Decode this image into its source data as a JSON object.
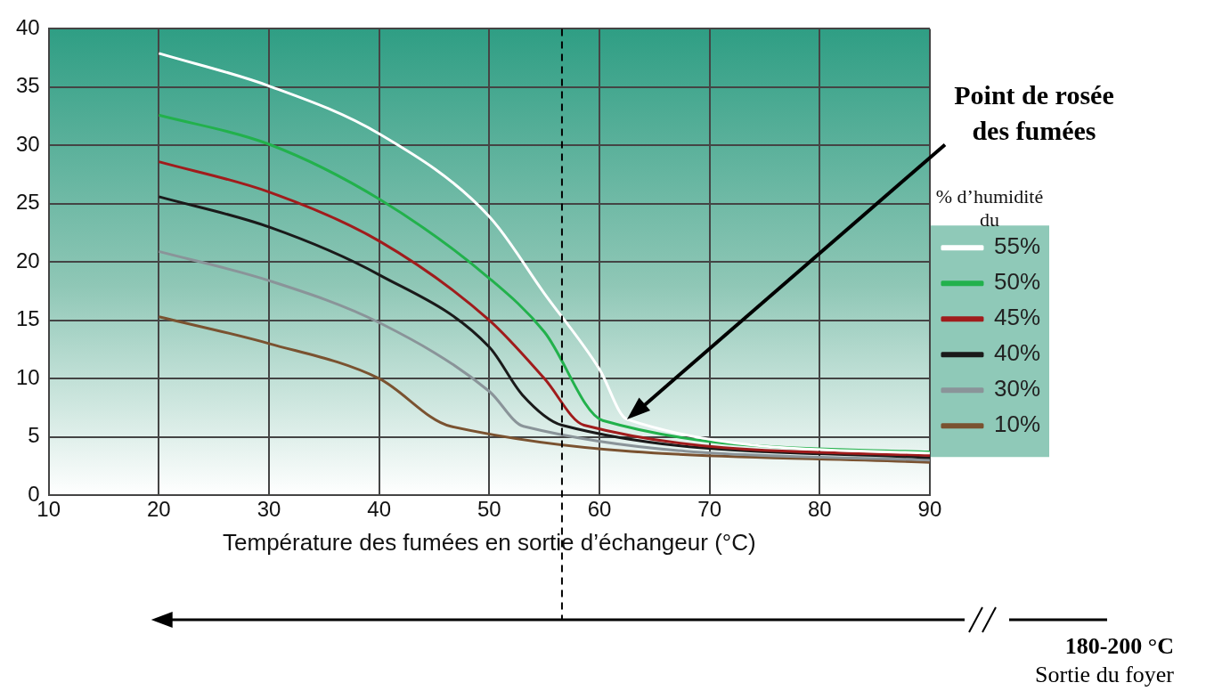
{
  "chart_data": {
    "type": "line",
    "xlabel": "Température des fumées en sortie d’échangeur (°C)",
    "legend_title": "% d’humidité du",
    "xlim": [
      10,
      90
    ],
    "ylim": [
      0,
      40
    ],
    "xticks": [
      10,
      20,
      30,
      40,
      50,
      60,
      70,
      80,
      90
    ],
    "yticks": [
      0,
      5,
      10,
      15,
      20,
      25,
      30,
      35,
      40
    ],
    "grid": true,
    "legend": "right",
    "marker": "none",
    "line_style": "solid",
    "series": [
      {
        "name": "55%",
        "color": "#ffffff",
        "x": [
          20,
          30,
          40,
          50,
          55,
          60,
          62.5,
          90
        ],
        "values": [
          37.9,
          35.1,
          31.0,
          23.9,
          17.3,
          10.8,
          6.5,
          3.6
        ]
      },
      {
        "name": "50%",
        "color": "#22b14c",
        "x": [
          20,
          30,
          40,
          50,
          55,
          60.3,
          90
        ],
        "values": [
          32.6,
          30.1,
          25.4,
          18.6,
          14.0,
          6.4,
          3.7
        ]
      },
      {
        "name": "45%",
        "color": "#a01c1c",
        "x": [
          20,
          30,
          40,
          50,
          55,
          58.6,
          90
        ],
        "values": [
          28.6,
          26.0,
          21.8,
          15.0,
          10.0,
          6.0,
          3.4
        ]
      },
      {
        "name": "40%",
        "color": "#1a1a1a",
        "x": [
          20,
          30,
          40,
          50,
          53,
          56.6,
          90
        ],
        "values": [
          25.6,
          23.0,
          18.9,
          12.7,
          8.6,
          6.0,
          3.2
        ]
      },
      {
        "name": "30%",
        "color": "#8a9499",
        "x": [
          20,
          30,
          40,
          50,
          53.1,
          90
        ],
        "values": [
          20.9,
          18.4,
          14.8,
          8.9,
          5.9,
          3.0
        ]
      },
      {
        "name": "10%",
        "color": "#7a5230",
        "x": [
          20,
          30,
          40,
          46.5,
          90
        ],
        "values": [
          15.3,
          13.0,
          10.0,
          5.9,
          2.8
        ]
      }
    ],
    "ref_lines": [
      {
        "axis": "x",
        "value": 56.6,
        "color": "#000000",
        "line_style": "dashed"
      }
    ],
    "annotations": [
      "Point de rosée des fumées",
      "180-200 °C",
      "Sortie du foyer"
    ]
  }
}
